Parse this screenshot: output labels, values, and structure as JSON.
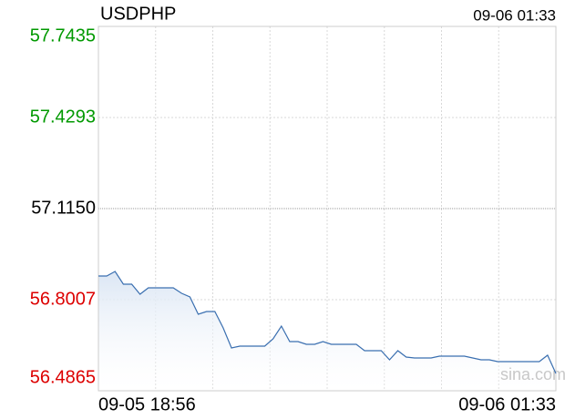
{
  "chart_data": {
    "type": "line",
    "title": "USDPHP",
    "updated": "09-06 01:33",
    "watermark": "sina.com",
    "categories": [
      "09-05 18:56",
      null,
      null,
      null,
      null,
      null,
      null,
      null,
      null,
      null,
      null,
      null,
      null,
      null,
      null,
      null,
      null,
      null,
      null,
      null,
      null,
      null,
      null,
      null,
      null,
      null,
      null,
      null,
      null,
      null,
      null,
      null,
      null,
      null,
      null,
      null,
      null,
      null,
      null,
      null,
      null,
      null,
      null,
      null,
      null,
      null,
      null,
      null,
      null,
      null,
      null,
      null,
      null,
      null,
      null,
      "09-06 01:33"
    ],
    "series": [
      {
        "name": "USDPHP",
        "color": "#3a6fb0",
        "values": [
          56.8825,
          56.8825,
          56.8982,
          56.8542,
          56.8542,
          56.8196,
          56.8416,
          56.8416,
          56.8416,
          56.8416,
          56.8227,
          56.8102,
          56.7505,
          56.7599,
          56.7599,
          56.7033,
          56.6342,
          56.6405,
          56.6405,
          56.6405,
          56.6405,
          56.6656,
          56.7096,
          56.6562,
          56.6562,
          56.6468,
          56.6468,
          56.6562,
          56.6468,
          56.6468,
          56.6468,
          56.6468,
          56.6248,
          56.6248,
          56.6248,
          56.5933,
          56.6248,
          56.6028,
          56.5996,
          56.5996,
          56.5996,
          56.6059,
          56.6059,
          56.6059,
          56.6059,
          56.5996,
          56.5933,
          56.5933,
          56.5871,
          56.5871,
          56.5871,
          56.5871,
          56.5871,
          56.5871,
          56.6091,
          56.5462
        ]
      }
    ],
    "ylim": [
      56.4865,
      57.7435
    ],
    "yticks": [
      57.7435,
      57.4293,
      {
        "value": 57.115,
        "label": "57.1150"
      },
      56.8007,
      56.4865
    ],
    "ytick_colors": [
      "#009900",
      "#009900",
      "#000000",
      "#dd0000",
      "#dd0000"
    ],
    "grid": true
  }
}
